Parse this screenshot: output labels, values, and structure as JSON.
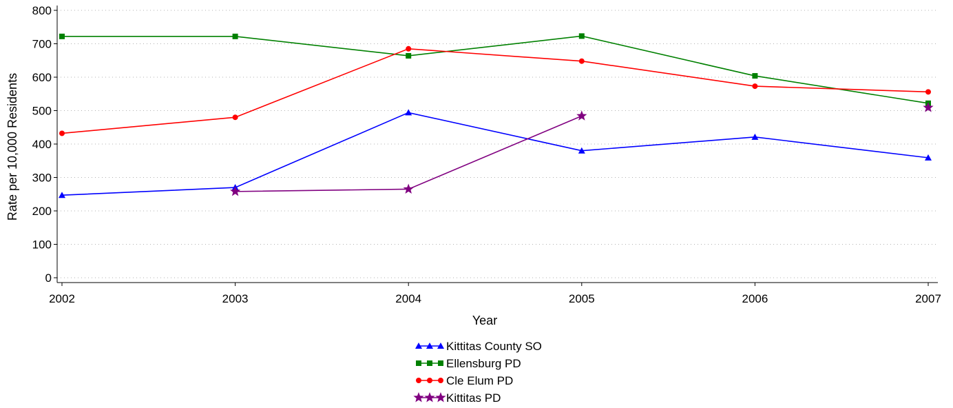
{
  "chart_data": {
    "type": "line",
    "xlabel": "Year",
    "ylabel": "Rate per 10,000 Residents",
    "x": [
      2002,
      2003,
      2004,
      2005,
      2006,
      2007
    ],
    "x_tick_labels": [
      "2002",
      "2003",
      "2004",
      "2005",
      "2006",
      "2007"
    ],
    "xlim": [
      2002,
      2007
    ],
    "ylim": [
      0,
      800
    ],
    "y_ticks": [
      0,
      100,
      200,
      300,
      400,
      500,
      600,
      700,
      800
    ],
    "y_tick_labels": [
      "0",
      "100",
      "200",
      "300",
      "400",
      "500",
      "600",
      "700",
      "800"
    ],
    "grid": "horizontal dotted",
    "legend_position": "bottom-center",
    "series": [
      {
        "name": "Kittitas County SO",
        "color": "#0000ff",
        "marker": "triangle",
        "values": [
          247,
          270,
          494,
          380,
          421,
          359
        ]
      },
      {
        "name": "Ellensburg PD",
        "color": "#008000",
        "marker": "square",
        "values": [
          722,
          722,
          664,
          723,
          604,
          522
        ]
      },
      {
        "name": "Cle Elum PD",
        "color": "#ff0000",
        "marker": "circle",
        "values": [
          432,
          480,
          685,
          648,
          573,
          556
        ]
      },
      {
        "name": "Kittitas PD",
        "color": "#800080",
        "marker": "star",
        "values": [
          null,
          258,
          265,
          484,
          null,
          509
        ]
      }
    ]
  }
}
